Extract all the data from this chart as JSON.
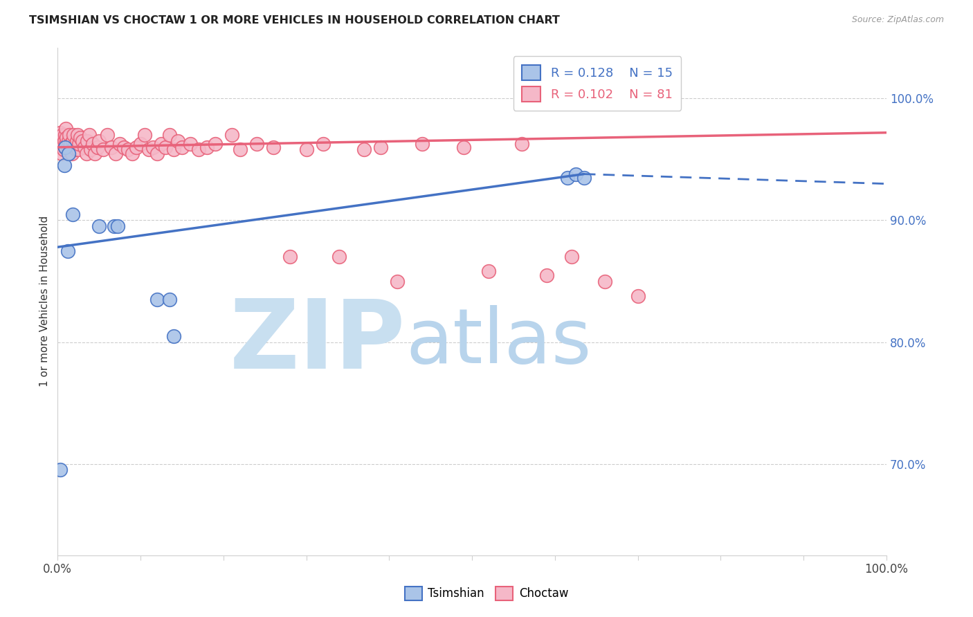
{
  "title": "TSIMSHIAN VS CHOCTAW 1 OR MORE VEHICLES IN HOUSEHOLD CORRELATION CHART",
  "source": "Source: ZipAtlas.com",
  "legend_label1": "Tsimshian",
  "legend_label2": "Choctaw",
  "R_tsimshian": "0.128",
  "N_tsimshian": "15",
  "R_choctaw": "0.102",
  "N_choctaw": "81",
  "tsimshian_color": "#aac4e8",
  "choctaw_color": "#f5b8c8",
  "tsimshian_line_color": "#4472c4",
  "choctaw_line_color": "#e8627a",
  "background_color": "#ffffff",
  "grid_color": "#cccccc",
  "watermark_zip": "ZIP",
  "watermark_atlas": "atlas",
  "watermark_color_zip": "#c8dff0",
  "watermark_color_atlas": "#b8d4ec",
  "right_ytick_color": "#4472c4",
  "xlim": [
    0.0,
    1.0
  ],
  "ylim": [
    0.625,
    1.042
  ],
  "yticks_right": [
    0.7,
    0.8,
    0.9,
    1.0
  ],
  "ytick_labels_right": [
    "70.0%",
    "80.0%",
    "90.0%",
    "100.0%"
  ],
  "tsimshian_x": [
    0.003,
    0.008,
    0.009,
    0.012,
    0.013,
    0.018,
    0.05,
    0.068,
    0.072,
    0.12,
    0.135,
    0.14,
    0.615,
    0.625,
    0.635
  ],
  "tsimshian_y": [
    0.695,
    0.945,
    0.96,
    0.875,
    0.955,
    0.905,
    0.895,
    0.895,
    0.895,
    0.835,
    0.835,
    0.805,
    0.935,
    0.938,
    0.935
  ],
  "choctaw_x": [
    0.002,
    0.003,
    0.004,
    0.005,
    0.006,
    0.006,
    0.007,
    0.008,
    0.009,
    0.009,
    0.01,
    0.01,
    0.011,
    0.012,
    0.013,
    0.014,
    0.015,
    0.016,
    0.017,
    0.018,
    0.019,
    0.02,
    0.022,
    0.023,
    0.024,
    0.025,
    0.026,
    0.027,
    0.03,
    0.032,
    0.035,
    0.036,
    0.038,
    0.04,
    0.042,
    0.045,
    0.048,
    0.05,
    0.055,
    0.06,
    0.065,
    0.07,
    0.075,
    0.08,
    0.085,
    0.09,
    0.095,
    0.1,
    0.105,
    0.11,
    0.115,
    0.12,
    0.125,
    0.13,
    0.135,
    0.14,
    0.145,
    0.15,
    0.16,
    0.17,
    0.18,
    0.19,
    0.21,
    0.22,
    0.24,
    0.26,
    0.28,
    0.3,
    0.32,
    0.34,
    0.37,
    0.39,
    0.41,
    0.44,
    0.49,
    0.52,
    0.56,
    0.59,
    0.62,
    0.66,
    0.7
  ],
  "choctaw_y": [
    0.965,
    0.972,
    0.96,
    0.955,
    0.963,
    0.97,
    0.958,
    0.965,
    0.96,
    0.97,
    0.963,
    0.975,
    0.968,
    0.96,
    0.965,
    0.97,
    0.958,
    0.963,
    0.955,
    0.965,
    0.97,
    0.96,
    0.958,
    0.965,
    0.97,
    0.958,
    0.963,
    0.968,
    0.965,
    0.96,
    0.955,
    0.965,
    0.97,
    0.958,
    0.963,
    0.955,
    0.96,
    0.965,
    0.958,
    0.97,
    0.96,
    0.955,
    0.963,
    0.96,
    0.958,
    0.955,
    0.96,
    0.963,
    0.97,
    0.958,
    0.96,
    0.955,
    0.963,
    0.96,
    0.97,
    0.958,
    0.965,
    0.96,
    0.963,
    0.958,
    0.96,
    0.963,
    0.97,
    0.958,
    0.963,
    0.96,
    0.87,
    0.958,
    0.963,
    0.87,
    0.958,
    0.96,
    0.85,
    0.963,
    0.96,
    0.858,
    0.963,
    0.855,
    0.87,
    0.85,
    0.838
  ],
  "tsimshian_line_x0": 0.0,
  "tsimshian_line_x1": 0.635,
  "tsimshian_line_x_dash_end": 1.0,
  "tsimshian_line_y_at_0": 0.878,
  "tsimshian_line_y_at_x1": 0.938,
  "tsimshian_line_y_at_end": 0.93,
  "choctaw_line_y_at_0": 0.96,
  "choctaw_line_y_at_end": 0.972
}
